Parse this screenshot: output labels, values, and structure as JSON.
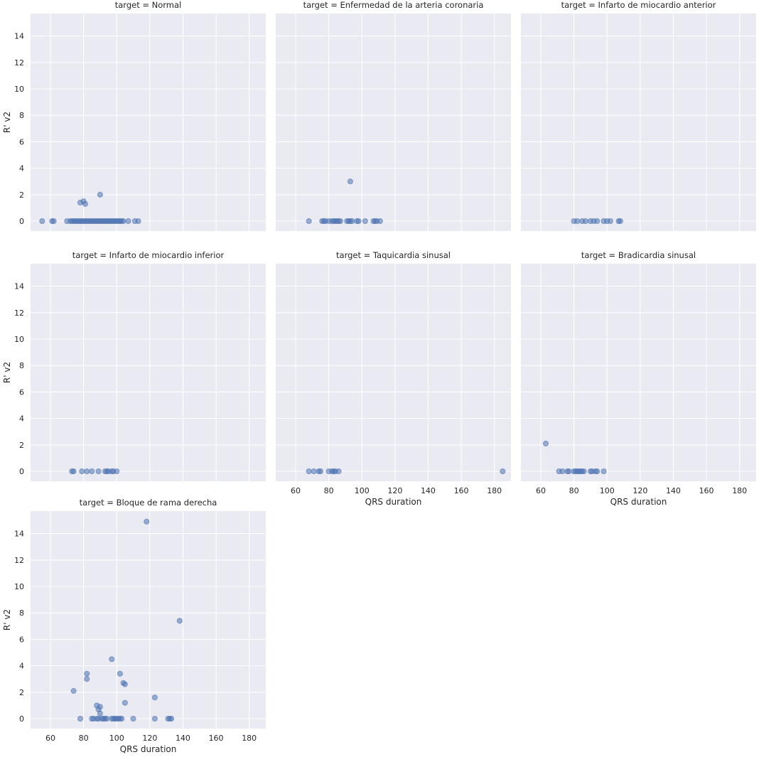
{
  "figure": {
    "point_color": "#4c72b0",
    "panel_background": "#eaeaf2",
    "grid_color": "#ffffff",
    "point_alpha": 0.55
  },
  "chart_data": {
    "type": "scatter",
    "facet_variable": "target",
    "xlabel": "QRS duration",
    "ylabel": "R' v2",
    "xlim": [
      48,
      190
    ],
    "ylim": [
      -0.75,
      15.7
    ],
    "x_ticks": [
      60,
      80,
      100,
      120,
      140,
      160,
      180
    ],
    "y_ticks": [
      0,
      2,
      4,
      6,
      8,
      10,
      12,
      14
    ],
    "grid": true,
    "shared_axes": true,
    "facets": [
      {
        "title": "target = Normal",
        "points": [
          [
            55,
            0
          ],
          [
            61,
            0
          ],
          [
            62,
            0
          ],
          [
            70,
            0
          ],
          [
            72,
            0
          ],
          [
            73,
            0
          ],
          [
            74,
            0
          ],
          [
            75,
            0
          ],
          [
            76,
            0
          ],
          [
            77,
            0
          ],
          [
            78,
            0
          ],
          [
            79,
            0
          ],
          [
            80,
            0
          ],
          [
            81,
            0
          ],
          [
            82,
            0
          ],
          [
            83,
            0
          ],
          [
            84,
            0
          ],
          [
            85,
            0
          ],
          [
            86,
            0
          ],
          [
            87,
            0
          ],
          [
            88,
            0
          ],
          [
            89,
            0
          ],
          [
            90,
            0
          ],
          [
            91,
            0
          ],
          [
            92,
            0
          ],
          [
            93,
            0
          ],
          [
            94,
            0
          ],
          [
            95,
            0
          ],
          [
            96,
            0
          ],
          [
            97,
            0
          ],
          [
            98,
            0
          ],
          [
            99,
            0
          ],
          [
            100,
            0
          ],
          [
            101,
            0
          ],
          [
            102,
            0
          ],
          [
            103,
            0
          ],
          [
            104,
            0
          ],
          [
            107,
            0
          ],
          [
            111,
            0
          ],
          [
            113,
            0
          ],
          [
            78,
            1.4
          ],
          [
            80,
            1.5
          ],
          [
            81,
            1.3
          ],
          [
            90,
            2.0
          ]
        ]
      },
      {
        "title": "target = Enfermedad de la arteria coronaria",
        "points": [
          [
            68,
            0
          ],
          [
            76,
            0
          ],
          [
            77,
            0
          ],
          [
            78,
            0
          ],
          [
            80,
            0
          ],
          [
            82,
            0
          ],
          [
            83,
            0
          ],
          [
            84,
            0
          ],
          [
            85,
            0
          ],
          [
            86,
            0
          ],
          [
            87,
            0
          ],
          [
            91,
            0
          ],
          [
            92,
            0
          ],
          [
            93,
            0
          ],
          [
            94,
            0
          ],
          [
            97,
            0
          ],
          [
            98,
            0
          ],
          [
            102,
            0
          ],
          [
            107,
            0
          ],
          [
            108,
            0
          ],
          [
            109,
            0
          ],
          [
            111,
            0
          ],
          [
            93,
            3.0
          ]
        ]
      },
      {
        "title": "target = Infarto de miocardio anterior",
        "points": [
          [
            80,
            0
          ],
          [
            82,
            0
          ],
          [
            85,
            0
          ],
          [
            87,
            0
          ],
          [
            90,
            0
          ],
          [
            92,
            0
          ],
          [
            94,
            0
          ],
          [
            98,
            0
          ],
          [
            100,
            0
          ],
          [
            102,
            0
          ],
          [
            107,
            0
          ],
          [
            108,
            0
          ]
        ]
      },
      {
        "title": "target = Infarto de miocardio inferior",
        "points": [
          [
            73,
            0
          ],
          [
            74,
            0
          ],
          [
            79,
            0
          ],
          [
            82,
            0
          ],
          [
            85,
            0
          ],
          [
            89,
            0
          ],
          [
            93,
            0
          ],
          [
            94,
            0
          ],
          [
            95,
            0
          ],
          [
            97,
            0
          ],
          [
            98,
            0
          ],
          [
            100,
            0
          ]
        ]
      },
      {
        "title": "target = Taquicardia sinusal",
        "points": [
          [
            68,
            0
          ],
          [
            71,
            0
          ],
          [
            74,
            0
          ],
          [
            75,
            0
          ],
          [
            80,
            0
          ],
          [
            82,
            0
          ],
          [
            83,
            0
          ],
          [
            84,
            0
          ],
          [
            86,
            0
          ],
          [
            185,
            0
          ]
        ]
      },
      {
        "title": "target = Bradicardia sinusal",
        "points": [
          [
            71,
            0
          ],
          [
            73,
            0
          ],
          [
            76,
            0
          ],
          [
            77,
            0
          ],
          [
            80,
            0
          ],
          [
            81,
            0
          ],
          [
            82,
            0
          ],
          [
            83,
            0
          ],
          [
            84,
            0
          ],
          [
            85,
            0
          ],
          [
            86,
            0
          ],
          [
            90,
            0
          ],
          [
            91,
            0
          ],
          [
            93,
            0
          ],
          [
            94,
            0
          ],
          [
            98,
            0
          ],
          [
            63,
            2.1
          ]
        ]
      },
      {
        "title": "target = Bloque de rama derecha",
        "points": [
          [
            118,
            14.9
          ],
          [
            138,
            7.4
          ],
          [
            97,
            4.5
          ],
          [
            82,
            3.4
          ],
          [
            102,
            3.4
          ],
          [
            82,
            3.0
          ],
          [
            104,
            2.7
          ],
          [
            105,
            2.6
          ],
          [
            74,
            2.1
          ],
          [
            123,
            1.6
          ],
          [
            105,
            1.2
          ],
          [
            88,
            1.0
          ],
          [
            90,
            0.9
          ],
          [
            89,
            0.7
          ],
          [
            90,
            0.4
          ],
          [
            78,
            0
          ],
          [
            85,
            0
          ],
          [
            86,
            0
          ],
          [
            88,
            0
          ],
          [
            89,
            0
          ],
          [
            91,
            0
          ],
          [
            92,
            0
          ],
          [
            93,
            0
          ],
          [
            94,
            0
          ],
          [
            97,
            0
          ],
          [
            98,
            0
          ],
          [
            99,
            0
          ],
          [
            100,
            0
          ],
          [
            101,
            0
          ],
          [
            102,
            0
          ],
          [
            103,
            0
          ],
          [
            110,
            0
          ],
          [
            123,
            0
          ],
          [
            131,
            0
          ],
          [
            132,
            0
          ],
          [
            133,
            0
          ]
        ]
      }
    ]
  }
}
